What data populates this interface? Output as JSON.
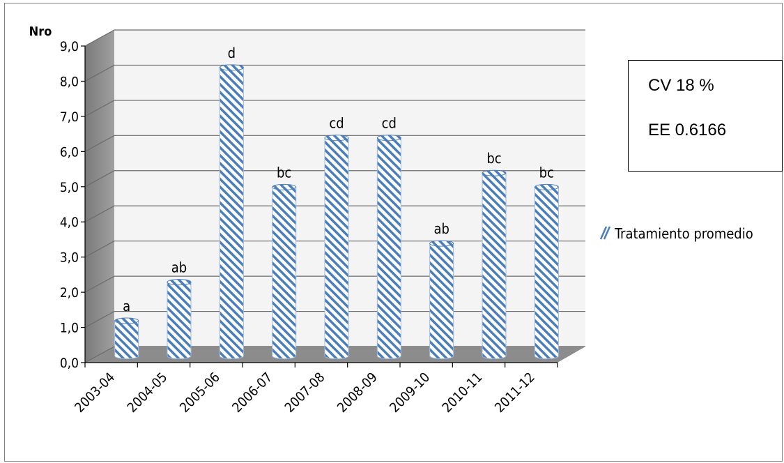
{
  "chart_data": {
    "type": "bar",
    "ylabel": "Nro",
    "ylim": [
      0,
      9
    ],
    "ytick_step": 1,
    "ytick_labels": [
      "0,0",
      "1,0",
      "2,0",
      "3,0",
      "4,0",
      "5,0",
      "6,0",
      "7,0",
      "8,0",
      "9,0"
    ],
    "grid": true,
    "style": "3d-cylinder",
    "categories": [
      "2003-04",
      "2004-05",
      "2005-06",
      "2006-07",
      "2007-08",
      "2008-09",
      "2009-10",
      "2010-11",
      "2011-12"
    ],
    "series": [
      {
        "name": "Tratamiento promedio",
        "values": [
          1.0,
          2.1,
          8.2,
          4.8,
          6.2,
          6.2,
          3.2,
          5.2,
          4.8
        ],
        "labels": [
          "a",
          "ab",
          "d",
          "bc",
          "cd",
          "cd",
          "ab",
          "bc",
          "bc"
        ],
        "color": "#4a7ebb",
        "pattern": "diagonal-stripes"
      }
    ],
    "legend_position": "right"
  },
  "stats": {
    "cv": "CV 18 %",
    "ee": "EE 0.6166"
  }
}
